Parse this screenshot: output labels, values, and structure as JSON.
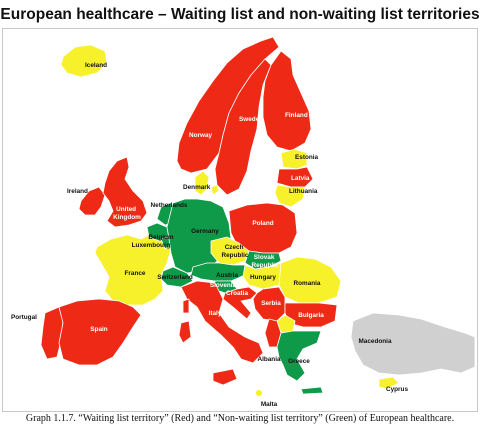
{
  "title": "European healthcare – Waiting list and non-waiting list territories",
  "caption": "Graph 1.1.7. “Waiting list territory” (Red) and “Non-waiting list territory” (Green) of European healthcare.",
  "colors": {
    "waiting_list": "#ee2a16",
    "non_waiting_list": "#0f9a4a",
    "intermediate": "#f7f12c",
    "not_covered": "#d0d0d0",
    "border": "#ffffff"
  },
  "countries": [
    {
      "id": "iceland",
      "label": "Iceland",
      "status": "intermediate"
    },
    {
      "id": "norway",
      "label": "Norway",
      "status": "waiting_list"
    },
    {
      "id": "sweden",
      "label": "Sweden",
      "status": "waiting_list"
    },
    {
      "id": "finland",
      "label": "Finland",
      "status": "waiting_list"
    },
    {
      "id": "estonia",
      "label": "Estonia",
      "status": "intermediate"
    },
    {
      "id": "latvia",
      "label": "Latvia",
      "status": "waiting_list"
    },
    {
      "id": "lithuania",
      "label": "Lithuania",
      "status": "intermediate"
    },
    {
      "id": "denmark",
      "label": "Denmark",
      "status": "intermediate"
    },
    {
      "id": "ireland",
      "label": "Ireland",
      "status": "waiting_list"
    },
    {
      "id": "united_kingdom",
      "label": "United Kingdom",
      "status": "waiting_list"
    },
    {
      "id": "netherlands",
      "label": "Netherlands",
      "status": "non_waiting_list"
    },
    {
      "id": "belgium",
      "label": "Belgium",
      "status": "non_waiting_list"
    },
    {
      "id": "luxembourg",
      "label": "Luxembourg",
      "status": "non_waiting_list"
    },
    {
      "id": "germany",
      "label": "Germany",
      "status": "non_waiting_list"
    },
    {
      "id": "poland",
      "label": "Poland",
      "status": "waiting_list"
    },
    {
      "id": "czech_republic",
      "label": "Czech Republic",
      "status": "intermediate"
    },
    {
      "id": "slovak_republic",
      "label": "Slovak Republic",
      "status": "non_waiting_list"
    },
    {
      "id": "france",
      "label": "France",
      "status": "intermediate"
    },
    {
      "id": "switzerland",
      "label": "Switzerland",
      "status": "non_waiting_list"
    },
    {
      "id": "austria",
      "label": "Austria",
      "status": "non_waiting_list"
    },
    {
      "id": "hungary",
      "label": "Hungary",
      "status": "intermediate"
    },
    {
      "id": "slovenia",
      "label": "Slovenia",
      "status": "non_waiting_list"
    },
    {
      "id": "croatia",
      "label": "Croatia",
      "status": "waiting_list"
    },
    {
      "id": "romania",
      "label": "Romania",
      "status": "intermediate"
    },
    {
      "id": "serbia",
      "label": "Serbia",
      "status": "waiting_list"
    },
    {
      "id": "bulgaria",
      "label": "Bulgaria",
      "status": "waiting_list"
    },
    {
      "id": "portugal",
      "label": "Portugal",
      "status": "waiting_list"
    },
    {
      "id": "spain",
      "label": "Spain",
      "status": "waiting_list"
    },
    {
      "id": "italy",
      "label": "Italy",
      "status": "waiting_list"
    },
    {
      "id": "macedonia",
      "label": "Macedonia",
      "status": "intermediate"
    },
    {
      "id": "albania",
      "label": "Albania",
      "status": "waiting_list"
    },
    {
      "id": "greece",
      "label": "Greece",
      "status": "non_waiting_list"
    },
    {
      "id": "malta",
      "label": "Malta",
      "status": "intermediate"
    },
    {
      "id": "cyprus",
      "label": "Cyprus",
      "status": "intermediate"
    },
    {
      "id": "turkey",
      "label": "",
      "status": "not_covered"
    }
  ]
}
